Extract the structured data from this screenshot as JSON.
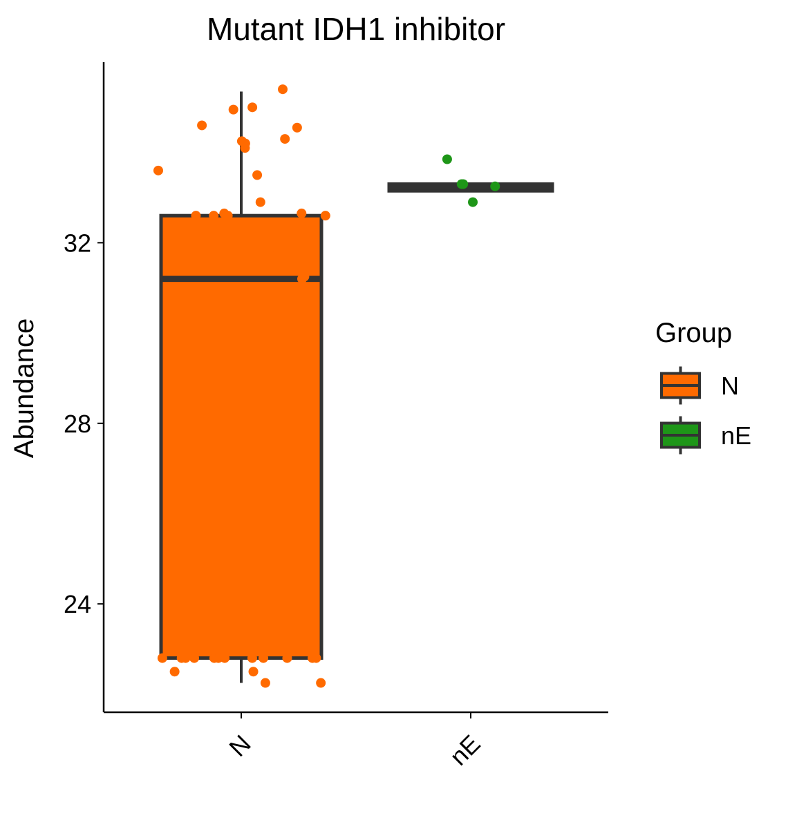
{
  "chart_data": {
    "type": "box",
    "title": "Mutant IDH1 inhibitor",
    "ylabel": "Abundance",
    "xlabel": "",
    "ylim": [
      21.6,
      36.0
    ],
    "yticks": [
      24,
      28,
      32
    ],
    "categories": [
      "N",
      "nE"
    ],
    "legend": {
      "title": "Group",
      "position": "right",
      "entries": [
        {
          "label": "N",
          "color": "#ff6a00"
        },
        {
          "label": "nE",
          "color": "#1e9618"
        }
      ]
    },
    "series": [
      {
        "name": "N",
        "color": "#ff6a00",
        "box": {
          "whisker_low": 22.25,
          "q1": 22.8,
          "median": 31.2,
          "q3": 32.6,
          "whisker_high": 35.35
        },
        "points": [
          35.4,
          35.0,
          34.95,
          34.6,
          34.55,
          34.3,
          34.25,
          34.2,
          34.1,
          33.6,
          33.5,
          32.9,
          32.65,
          32.65,
          32.6,
          32.6,
          32.6,
          32.6,
          31.85,
          31.25,
          31.2,
          22.8,
          22.8,
          22.8,
          22.8,
          22.8,
          22.8,
          22.8,
          22.8,
          22.8,
          22.8,
          22.8,
          22.8,
          22.5,
          22.5,
          22.25,
          22.25
        ]
      },
      {
        "name": "nE",
        "color": "#1e9618",
        "box": {
          "whisker_low": 33.15,
          "q1": 33.15,
          "median": 33.25,
          "q3": 33.3,
          "whisker_high": 33.3
        },
        "points": [
          33.85,
          33.3,
          33.3,
          33.25,
          32.9
        ]
      }
    ]
  }
}
